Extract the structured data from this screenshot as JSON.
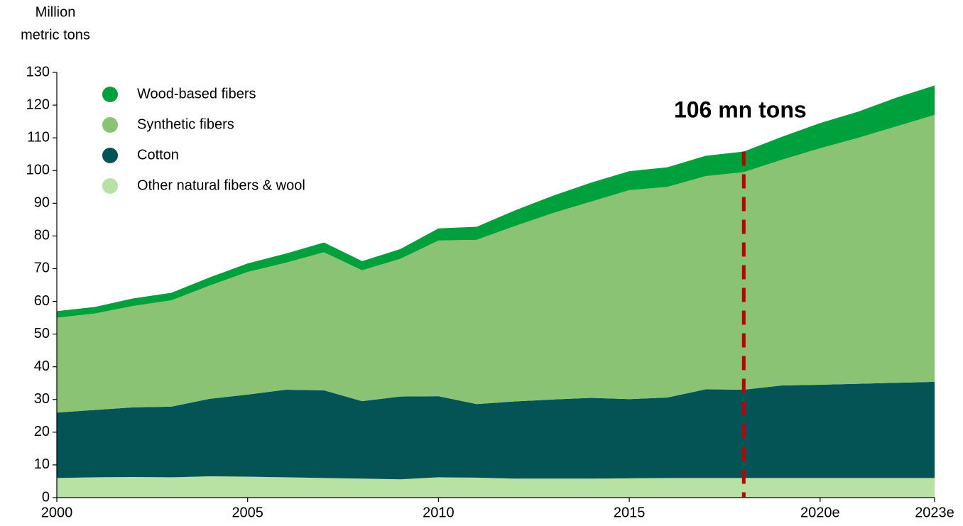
{
  "chart_data": {
    "type": "stacked_area",
    "ylabel": [
      "Million",
      "metric tons"
    ],
    "categories": [
      "2000",
      null,
      null,
      null,
      null,
      "2005",
      null,
      null,
      null,
      null,
      "2010",
      null,
      null,
      null,
      null,
      "2015",
      null,
      null,
      null,
      null,
      "2020e",
      null,
      null,
      "2023e"
    ],
    "series": [
      {
        "name": "Other natural fibers & wool",
        "color": "#b8e2a4",
        "values": [
          6.0,
          6.2,
          6.3,
          6.2,
          6.5,
          6.4,
          6.2,
          6.0,
          5.8,
          5.6,
          6.2,
          6.1,
          5.8,
          5.8,
          5.8,
          5.9,
          6.0,
          6.0,
          6.0,
          6.0,
          6.0,
          6.0,
          6.0,
          6.0
        ]
      },
      {
        "name": "Cotton",
        "color": "#045456",
        "values": [
          20.0,
          20.6,
          21.3,
          21.6,
          23.7,
          25.1,
          26.8,
          26.8,
          23.7,
          25.3,
          24.8,
          22.5,
          23.6,
          24.2,
          24.7,
          24.2,
          24.6,
          27.1,
          27.0,
          28.3,
          28.5,
          28.8,
          29.1,
          29.4
        ]
      },
      {
        "name": "Synthetic fibers",
        "color": "#8bc374",
        "values": [
          29.0,
          29.5,
          31.0,
          32.5,
          34.6,
          37.5,
          38.8,
          42.2,
          40.0,
          42.1,
          47.6,
          50.2,
          53.6,
          57.0,
          60.0,
          63.9,
          64.4,
          65.2,
          66.5,
          69.0,
          72.3,
          75.2,
          78.4,
          81.6
        ]
      },
      {
        "name": "Wood-based fibers",
        "color": "#00a03c",
        "values": [
          2.0,
          2.0,
          2.3,
          2.3,
          2.5,
          2.6,
          2.8,
          3.0,
          2.8,
          3.0,
          3.7,
          4.0,
          4.8,
          5.3,
          5.8,
          5.8,
          6.0,
          6.2,
          6.3,
          7.0,
          7.7,
          8.0,
          8.8,
          9.0
        ]
      }
    ],
    "annotation": "106 mn tons",
    "annotation_color": "#c00000",
    "ylim": [
      0,
      130
    ],
    "yticks": [
      0,
      10,
      20,
      30,
      40,
      50,
      60,
      70,
      80,
      90,
      100,
      110,
      120,
      130
    ],
    "legend": "upper left"
  }
}
